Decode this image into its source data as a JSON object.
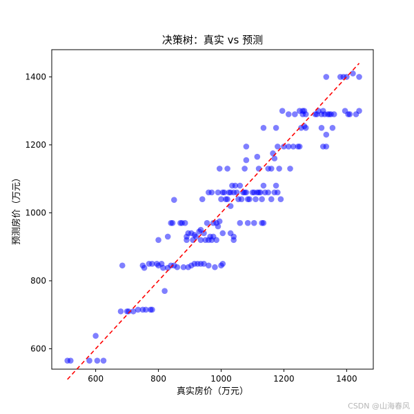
{
  "chart_data": {
    "type": "scatter",
    "title": "决策树：真实 vs 预测",
    "xlabel": "真实房价（万元）",
    "ylabel": "预测房价（万元）",
    "xlim": [
      460,
      1485
    ],
    "ylim": [
      540,
      1480
    ],
    "xticks": [
      600,
      800,
      1000,
      1200,
      1400
    ],
    "yticks": [
      600,
      800,
      1000,
      1200,
      1400
    ],
    "xtick_labels": [
      "600",
      "800",
      "1000",
      "1200",
      "1400"
    ],
    "ytick_labels": [
      "600",
      "800",
      "1000",
      "1200",
      "1400"
    ],
    "grid": false,
    "point_color": "#0000ff",
    "point_alpha": 0.5,
    "reference_line": {
      "from": [
        510,
        510
      ],
      "to": [
        1440,
        1440
      ],
      "color": "#ff0000",
      "style": "dashed"
    },
    "points": [
      [
        510,
        565
      ],
      [
        520,
        565
      ],
      [
        600,
        638
      ],
      [
        605,
        565
      ],
      [
        625,
        565
      ],
      [
        580,
        565
      ],
      [
        680,
        710
      ],
      [
        700,
        710
      ],
      [
        705,
        710
      ],
      [
        720,
        710
      ],
      [
        735,
        715
      ],
      [
        750,
        715
      ],
      [
        760,
        715
      ],
      [
        775,
        715
      ],
      [
        780,
        715
      ],
      [
        685,
        845
      ],
      [
        750,
        845
      ],
      [
        755,
        838
      ],
      [
        770,
        850
      ],
      [
        780,
        850
      ],
      [
        795,
        850
      ],
      [
        800,
        845
      ],
      [
        810,
        850
      ],
      [
        815,
        838
      ],
      [
        830,
        838
      ],
      [
        840,
        845
      ],
      [
        850,
        845
      ],
      [
        860,
        840
      ],
      [
        880,
        840
      ],
      [
        895,
        840
      ],
      [
        800,
        920
      ],
      [
        820,
        770
      ],
      [
        830,
        930
      ],
      [
        840,
        970
      ],
      [
        845,
        970
      ],
      [
        850,
        1038
      ],
      [
        870,
        970
      ],
      [
        875,
        970
      ],
      [
        885,
        970
      ],
      [
        890,
        930
      ],
      [
        890,
        920
      ],
      [
        895,
        940
      ],
      [
        905,
        940
      ],
      [
        910,
        920
      ],
      [
        915,
        935
      ],
      [
        920,
        930
      ],
      [
        930,
        945
      ],
      [
        935,
        950
      ],
      [
        935,
        920
      ],
      [
        945,
        940
      ],
      [
        950,
        920
      ],
      [
        955,
        970
      ],
      [
        960,
        920
      ],
      [
        965,
        930
      ],
      [
        970,
        920
      ],
      [
        975,
        930
      ],
      [
        985,
        920
      ],
      [
        990,
        960
      ],
      [
        995,
        975
      ],
      [
        1005,
        940
      ],
      [
        1030,
        940
      ],
      [
        1040,
        930
      ],
      [
        1040,
        920
      ],
      [
        905,
        845
      ],
      [
        915,
        850
      ],
      [
        925,
        850
      ],
      [
        935,
        850
      ],
      [
        945,
        850
      ],
      [
        960,
        845
      ],
      [
        980,
        840
      ],
      [
        1000,
        845
      ],
      [
        1005,
        850
      ],
      [
        940,
        1040
      ],
      [
        960,
        1060
      ],
      [
        970,
        1060
      ],
      [
        975,
        970
      ],
      [
        985,
        970
      ],
      [
        990,
        1060
      ],
      [
        995,
        1130
      ],
      [
        1000,
        1040
      ],
      [
        1005,
        1060
      ],
      [
        1010,
        1060
      ],
      [
        1015,
        1040
      ],
      [
        1020,
        1040
      ],
      [
        1025,
        1060
      ],
      [
        1030,
        1060
      ],
      [
        1035,
        1080
      ],
      [
        1040,
        1060
      ],
      [
        1045,
        1080
      ],
      [
        1050,
        1060
      ],
      [
        1055,
        1040
      ],
      [
        1060,
        1080
      ],
      [
        1065,
        1040
      ],
      [
        1070,
        1060
      ],
      [
        1075,
        1060
      ],
      [
        1080,
        1060
      ],
      [
        1085,
        1040
      ],
      [
        1090,
        1040
      ],
      [
        1100,
        1060
      ],
      [
        1105,
        1060
      ],
      [
        1110,
        1040
      ],
      [
        1115,
        1060
      ],
      [
        1120,
        1060
      ],
      [
        1125,
        1060
      ],
      [
        1130,
        1040
      ],
      [
        1135,
        1080
      ],
      [
        1140,
        1060
      ],
      [
        1150,
        1060
      ],
      [
        1160,
        1040
      ],
      [
        1170,
        1060
      ],
      [
        1175,
        1080
      ],
      [
        1180,
        1060
      ],
      [
        1190,
        1040
      ],
      [
        1020,
        1130
      ],
      [
        1030,
        1020
      ],
      [
        1060,
        970
      ],
      [
        1075,
        1130
      ],
      [
        1080,
        1195
      ],
      [
        1080,
        1155
      ],
      [
        1085,
        970
      ],
      [
        1105,
        970
      ],
      [
        1115,
        1165
      ],
      [
        1120,
        1130
      ],
      [
        1130,
        970
      ],
      [
        1135,
        970
      ],
      [
        1135,
        1250
      ],
      [
        1150,
        1130
      ],
      [
        1160,
        1130
      ],
      [
        1165,
        1175
      ],
      [
        1170,
        1160
      ],
      [
        1175,
        1250
      ],
      [
        1180,
        1195
      ],
      [
        1185,
        1130
      ],
      [
        1200,
        1195
      ],
      [
        1195,
        1300
      ],
      [
        1215,
        1195
      ],
      [
        1215,
        1290
      ],
      [
        1220,
        1130
      ],
      [
        1230,
        1195
      ],
      [
        1235,
        1290
      ],
      [
        1245,
        1195
      ],
      [
        1250,
        1195
      ],
      [
        1250,
        1300
      ],
      [
        1255,
        1250
      ],
      [
        1260,
        1290
      ],
      [
        1260,
        1300
      ],
      [
        1265,
        1255
      ],
      [
        1265,
        1300
      ],
      [
        1270,
        1250
      ],
      [
        1270,
        1290
      ],
      [
        1300,
        1290
      ],
      [
        1305,
        1290
      ],
      [
        1310,
        1300
      ],
      [
        1320,
        1250
      ],
      [
        1320,
        1290
      ],
      [
        1325,
        1195
      ],
      [
        1325,
        1300
      ],
      [
        1330,
        1290
      ],
      [
        1335,
        1195
      ],
      [
        1335,
        1230
      ],
      [
        1335,
        1400
      ],
      [
        1340,
        1290
      ],
      [
        1345,
        1290
      ],
      [
        1350,
        1290
      ],
      [
        1355,
        1250
      ],
      [
        1360,
        1290
      ],
      [
        1380,
        1400
      ],
      [
        1390,
        1400
      ],
      [
        1395,
        1300
      ],
      [
        1400,
        1400
      ],
      [
        1405,
        1290
      ],
      [
        1410,
        1290
      ],
      [
        1420,
        1410
      ],
      [
        1430,
        1290
      ],
      [
        1440,
        1400
      ],
      [
        1440,
        1300
      ]
    ]
  },
  "watermark": "CSDN @山海春风"
}
